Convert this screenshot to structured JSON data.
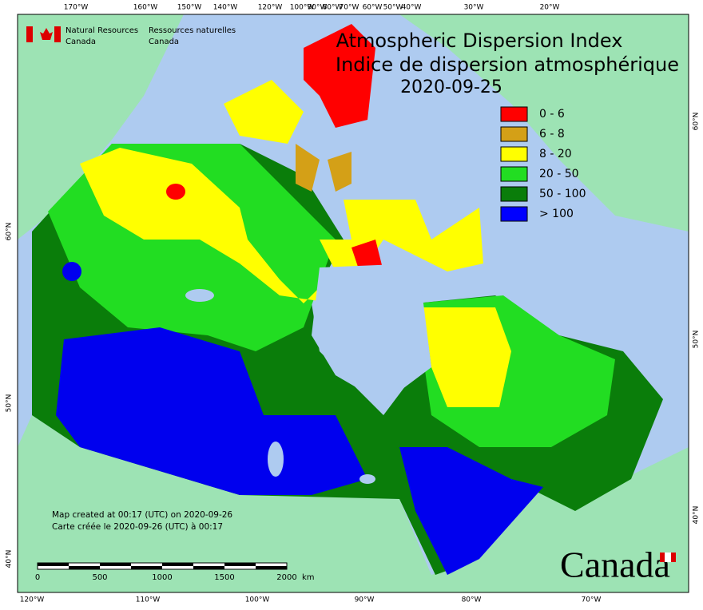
{
  "header": {
    "title_en": "Atmospheric Dispersion Index",
    "title_fr": "Indice de dispersion atmosphérique",
    "date": "2020-09-25"
  },
  "legend": [
    {
      "label": "0 - 6",
      "color": "#ff0000"
    },
    {
      "label": "6 - 8",
      "color": "#d4a017"
    },
    {
      "label": "8 - 20",
      "color": "#ffff00"
    },
    {
      "label": "20 - 50",
      "color": "#22dd22"
    },
    {
      "label": "50 - 100",
      "color": "#0a7d0a"
    },
    {
      "label": "> 100",
      "color": "#0000ff"
    }
  ],
  "agency": {
    "en_line1": "Natural Resources",
    "en_line2": "Canada",
    "fr_line1": "Ressources naturelles",
    "fr_line2": "Canada"
  },
  "graticule": {
    "top": [
      "170°W",
      "160°W",
      "150°W",
      "140°W",
      "120°W",
      "100°W",
      "90°W",
      "80°W",
      "70°W",
      "60°W",
      "50°W",
      "40°W",
      "30°W",
      "20°W"
    ],
    "bottom": [
      "120°W",
      "110°W",
      "100°W",
      "90°W",
      "80°W",
      "70°W"
    ],
    "left": [
      "60°N",
      "50°N",
      "40°N"
    ],
    "right": [
      "60°N",
      "50°N",
      "40°N"
    ]
  },
  "credits": {
    "line_en": "Map created at 00:17 (UTC) on 2020-09-26",
    "line_fr": "Carte créée le 2020-09-26 (UTC) à 00:17"
  },
  "scale": {
    "labels": [
      "0",
      "500",
      "1000",
      "1500",
      "2000"
    ],
    "unit": "km"
  },
  "wordmark": "Canada"
}
